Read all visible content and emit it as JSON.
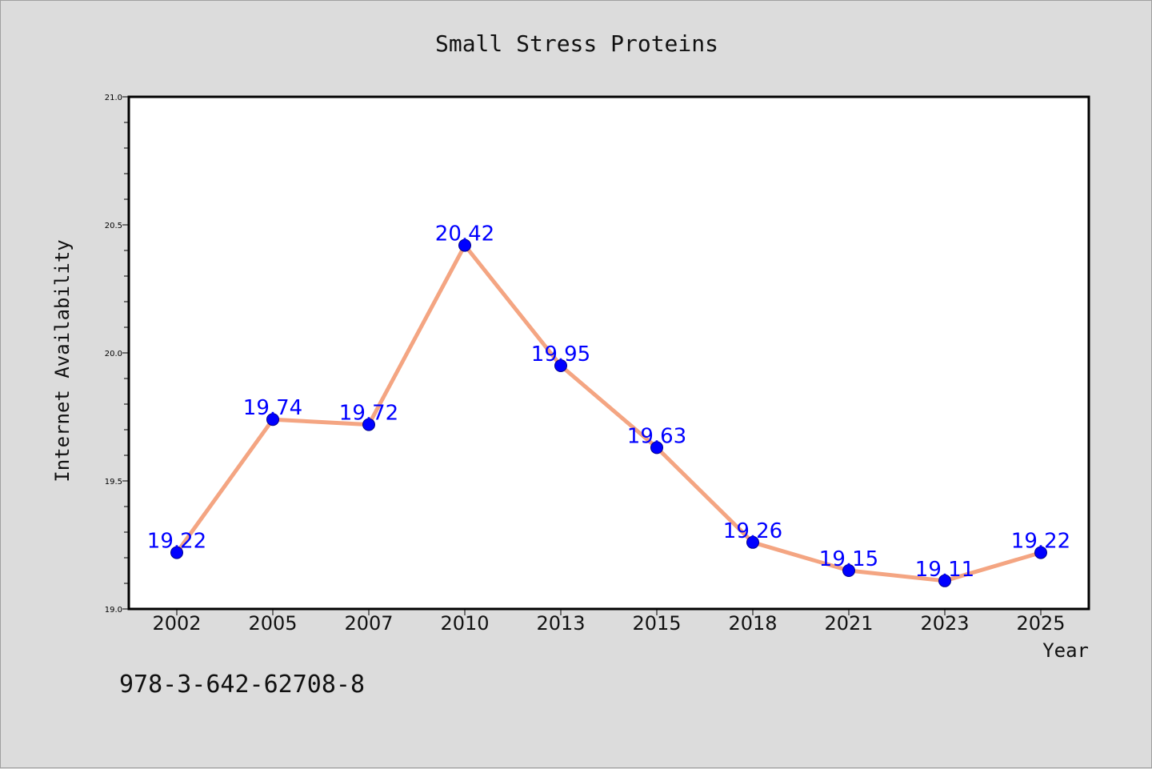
{
  "footer_text": "978-3-642-62708-8",
  "chart_data": {
    "type": "line",
    "title": "Small Stress Proteins",
    "xlabel": "Year",
    "ylabel": "Internet Availability",
    "categories": [
      "2002",
      "2005",
      "2007",
      "2010",
      "2013",
      "2015",
      "2018",
      "2021",
      "2023",
      "2025"
    ],
    "values": [
      19.22,
      19.74,
      19.72,
      20.42,
      19.95,
      19.63,
      19.26,
      19.15,
      19.11,
      19.22
    ],
    "data_labels": [
      "19.22",
      "19.74",
      "19.72",
      "20.42",
      "19.95",
      "19.63",
      "19.26",
      "19.15",
      "19.11",
      "19.22"
    ],
    "ylim": [
      19.0,
      21.0
    ],
    "yticks": [
      "19.0",
      "19.5",
      "20.0",
      "20.5",
      "21.0"
    ],
    "grid": false,
    "line_color": "#f4a582",
    "marker_color": "#0000ff",
    "label_color": "#0000ff",
    "background_color": "#dcdcdc",
    "plot_background_color": "#ffffff"
  }
}
